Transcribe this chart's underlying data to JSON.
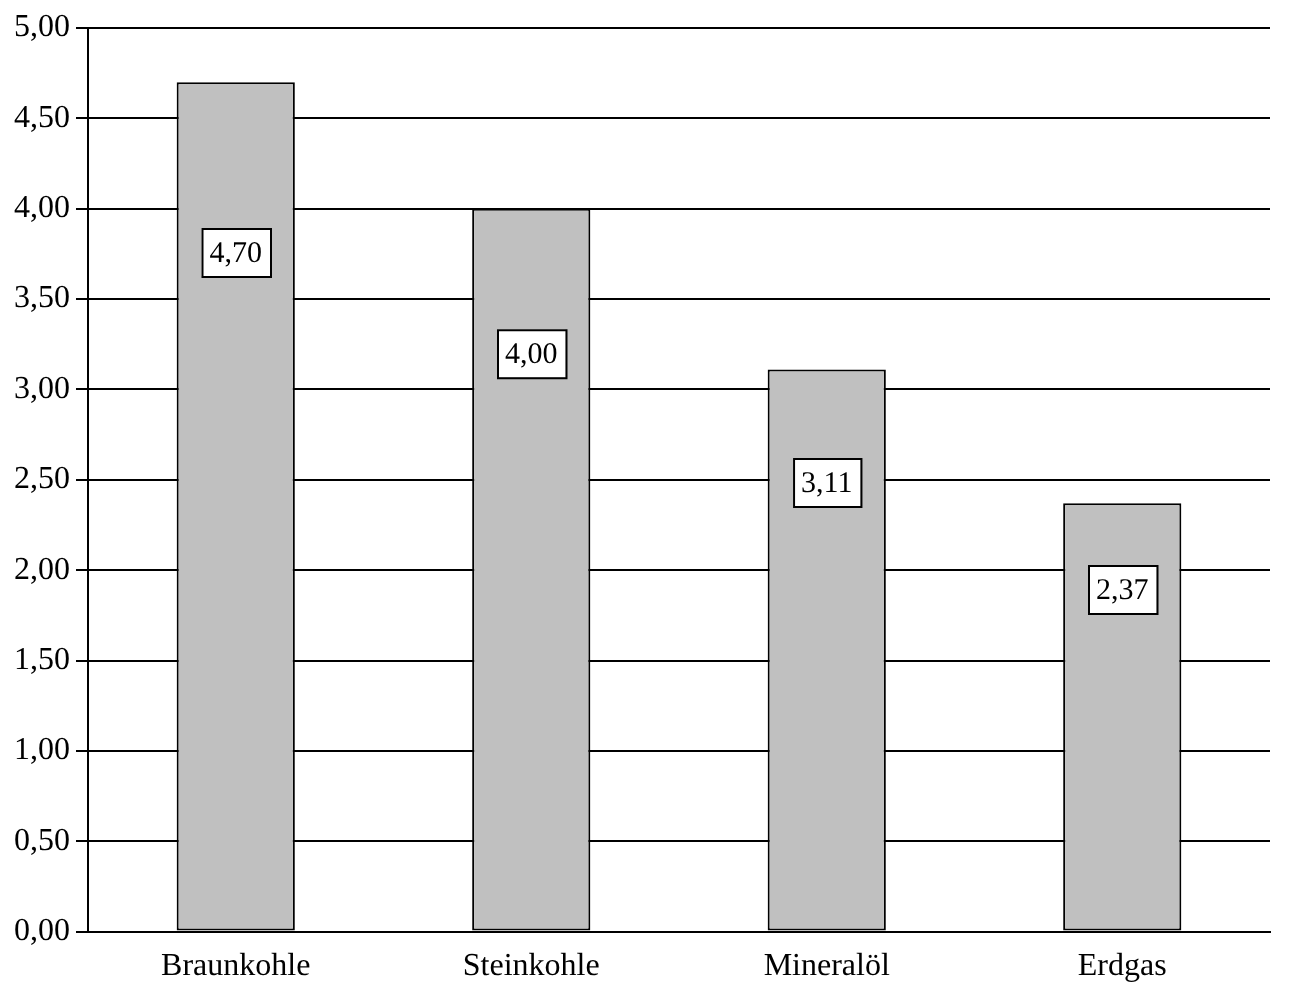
{
  "chart_data": {
    "type": "bar",
    "categories": [
      "Braunkohle",
      "Steinkohle",
      "Mineralöl",
      "Erdgas"
    ],
    "values": [
      4.7,
      4.0,
      3.11,
      2.37
    ],
    "value_labels": [
      "4,70",
      "4,00",
      "3,11",
      "2,37"
    ],
    "color": "#c0c0c0",
    "ylim": [
      0,
      5
    ],
    "yticks": [
      {
        "value": 0,
        "label": "0,00"
      },
      {
        "value": 0.5,
        "label": "0,50"
      },
      {
        "value": 1,
        "label": "1,00"
      },
      {
        "value": 1.5,
        "label": "1,50"
      },
      {
        "value": 2,
        "label": "2,00"
      },
      {
        "value": 2.5,
        "label": "2,50"
      },
      {
        "value": 3,
        "label": "3,00"
      },
      {
        "value": 3.5,
        "label": "3,50"
      },
      {
        "value": 4,
        "label": "4,00"
      },
      {
        "value": 4.5,
        "label": "4,50"
      },
      {
        "value": 5,
        "label": "5,00"
      }
    ],
    "grid": "y"
  }
}
